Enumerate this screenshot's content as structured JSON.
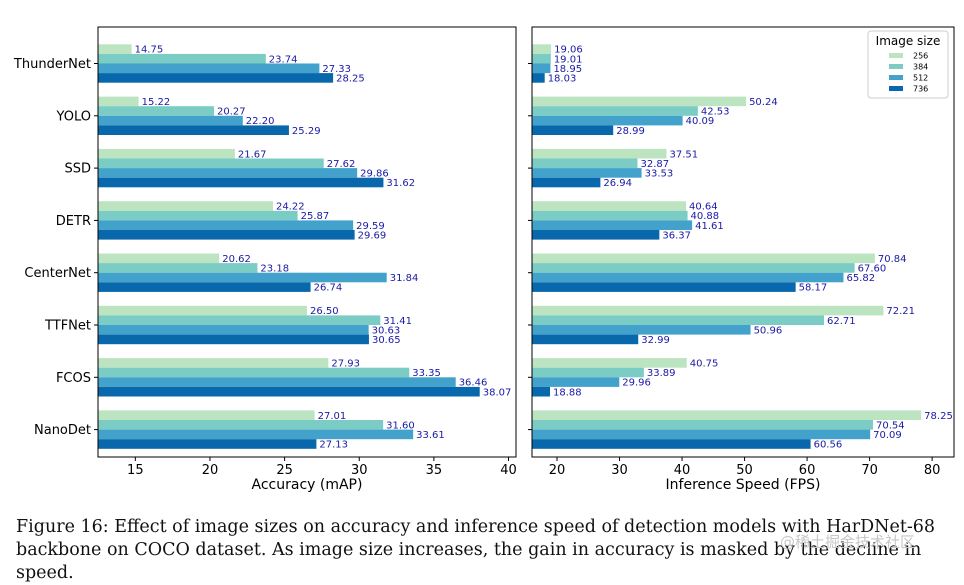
{
  "chart_data": [
    {
      "type": "bar",
      "orientation": "horizontal",
      "categories": [
        "ThunderNet",
        "YOLO",
        "SSD",
        "DETR",
        "CenterNet",
        "TTFNet",
        "FCOS",
        "NanoDet"
      ],
      "series": [
        {
          "name": "256",
          "values": [
            14.75,
            15.22,
            21.67,
            24.22,
            20.62,
            26.5,
            27.93,
            27.01
          ]
        },
        {
          "name": "384",
          "values": [
            23.74,
            20.27,
            27.62,
            25.87,
            23.18,
            31.41,
            33.35,
            31.6
          ]
        },
        {
          "name": "512",
          "values": [
            27.33,
            22.2,
            29.86,
            29.59,
            31.84,
            30.63,
            36.46,
            33.61
          ]
        },
        {
          "name": "736",
          "values": [
            28.25,
            25.29,
            31.62,
            29.69,
            26.74,
            30.65,
            38.07,
            27.13
          ]
        }
      ],
      "value_labels": [
        [
          "14.75",
          "15.22",
          "21.67",
          "24.22",
          "20.62",
          "26.50",
          "27.93",
          "27.01"
        ],
        [
          "23.74",
          "20.27",
          "27.62",
          "25.87",
          "23.18",
          "31.41",
          "33.35",
          "31.60"
        ],
        [
          "27.33",
          "22.20",
          "29.86",
          "29.59",
          "31.84",
          "30.63",
          "36.46",
          "33.61"
        ],
        [
          "28.25",
          "25.29",
          "31.62",
          "29.69",
          "26.74",
          "30.65",
          "38.07",
          "27.13"
        ]
      ],
      "xlabel": "Accuracy (mAP)",
      "ylabel": "",
      "xlim": [
        12.5,
        40.5
      ],
      "xticks": [
        15,
        20,
        25,
        30,
        35,
        40
      ],
      "grid": false,
      "legend": false
    },
    {
      "type": "bar",
      "orientation": "horizontal",
      "categories": [
        "ThunderNet",
        "YOLO",
        "SSD",
        "DETR",
        "CenterNet",
        "TTFNet",
        "FCOS",
        "NanoDet"
      ],
      "series": [
        {
          "name": "256",
          "values": [
            19.06,
            50.24,
            37.51,
            40.64,
            70.84,
            72.21,
            40.75,
            78.25
          ]
        },
        {
          "name": "384",
          "values": [
            19.01,
            42.53,
            32.87,
            40.88,
            67.6,
            62.71,
            33.89,
            70.54
          ]
        },
        {
          "name": "512",
          "values": [
            18.95,
            40.09,
            33.53,
            41.61,
            65.82,
            50.96,
            29.96,
            70.09
          ]
        },
        {
          "name": "736",
          "values": [
            18.03,
            28.99,
            26.94,
            36.37,
            58.17,
            32.99,
            18.88,
            60.56
          ]
        }
      ],
      "value_labels": [
        [
          "19.06",
          "50.24",
          "37.51",
          "40.64",
          "70.84",
          "72.21",
          "40.75",
          "78.25"
        ],
        [
          "19.01",
          "42.53",
          "32.87",
          "40.88",
          "67.60",
          "62.71",
          "33.89",
          "70.54"
        ],
        [
          "18.95",
          "40.09",
          "33.53",
          "41.61",
          "65.82",
          "50.96",
          "29.96",
          "70.09"
        ],
        [
          "18.03",
          "28.99",
          "26.94",
          "36.37",
          "58.17",
          "32.99",
          "18.88",
          "60.56"
        ]
      ],
      "xlabel": "Inference Speed (FPS)",
      "ylabel": "",
      "xlim": [
        16,
        83.5
      ],
      "xticks": [
        20,
        30,
        40,
        50,
        60,
        70,
        80
      ],
      "grid": false,
      "legend": true,
      "legend_title": "Image size",
      "legend_placement": "top-right"
    }
  ],
  "colors": {
    "256": "#bce4c0",
    "384": "#7accc4",
    "512": "#43a2cb",
    "736": "#0868ab",
    "value_label": "#1a1aa6"
  },
  "caption": "Figure 16: Effect of image sizes on accuracy and inference speed of detection models with HarDNet-68 backbone on COCO dataset. As image size increases, the gain in accuracy is masked by the decline in speed.",
  "watermark": "@稀土掘金技术社区"
}
